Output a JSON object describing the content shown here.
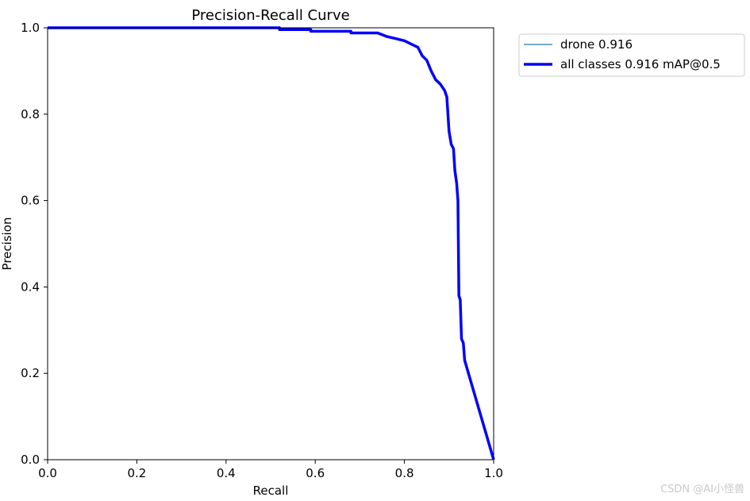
{
  "chart_data": {
    "type": "line",
    "title": "Precision-Recall Curve",
    "xlabel": "Recall",
    "ylabel": "Precision",
    "xlim": [
      0.0,
      1.0
    ],
    "ylim": [
      0.0,
      1.0
    ],
    "x_ticks": [
      "0.0",
      "0.2",
      "0.4",
      "0.6",
      "0.8",
      "1.0"
    ],
    "y_ticks": [
      "0.0",
      "0.2",
      "0.4",
      "0.6",
      "0.8",
      "1.0"
    ],
    "grid": false,
    "legend_placement": "outside-upper-right",
    "series": [
      {
        "name": "drone 0.916",
        "color": "#1f77b4",
        "points": [
          [
            0.0,
            1.0
          ],
          [
            0.52,
            1.0
          ],
          [
            0.52,
            0.996
          ],
          [
            0.59,
            0.996
          ],
          [
            0.59,
            0.992
          ],
          [
            0.68,
            0.992
          ],
          [
            0.68,
            0.988
          ],
          [
            0.74,
            0.988
          ],
          [
            0.76,
            0.98
          ],
          [
            0.78,
            0.975
          ],
          [
            0.8,
            0.97
          ],
          [
            0.82,
            0.96
          ],
          [
            0.83,
            0.955
          ],
          [
            0.84,
            0.935
          ],
          [
            0.85,
            0.925
          ],
          [
            0.86,
            0.9
          ],
          [
            0.865,
            0.89
          ],
          [
            0.87,
            0.88
          ],
          [
            0.88,
            0.87
          ],
          [
            0.89,
            0.855
          ],
          [
            0.895,
            0.84
          ],
          [
            0.9,
            0.76
          ],
          [
            0.905,
            0.73
          ],
          [
            0.91,
            0.72
          ],
          [
            0.913,
            0.67
          ],
          [
            0.917,
            0.64
          ],
          [
            0.92,
            0.6
          ],
          [
            0.922,
            0.38
          ],
          [
            0.925,
            0.37
          ],
          [
            0.928,
            0.28
          ],
          [
            0.932,
            0.27
          ],
          [
            0.935,
            0.23
          ],
          [
            1.0,
            0.0
          ]
        ]
      },
      {
        "name": "all classes 0.916 mAP@0.5",
        "color": "#0000ff",
        "points": [
          [
            0.0,
            1.0
          ],
          [
            0.52,
            1.0
          ],
          [
            0.52,
            0.996
          ],
          [
            0.59,
            0.996
          ],
          [
            0.59,
            0.992
          ],
          [
            0.68,
            0.992
          ],
          [
            0.68,
            0.988
          ],
          [
            0.74,
            0.988
          ],
          [
            0.76,
            0.98
          ],
          [
            0.78,
            0.975
          ],
          [
            0.8,
            0.97
          ],
          [
            0.82,
            0.96
          ],
          [
            0.83,
            0.955
          ],
          [
            0.84,
            0.935
          ],
          [
            0.85,
            0.925
          ],
          [
            0.86,
            0.9
          ],
          [
            0.865,
            0.89
          ],
          [
            0.87,
            0.88
          ],
          [
            0.88,
            0.87
          ],
          [
            0.89,
            0.855
          ],
          [
            0.895,
            0.84
          ],
          [
            0.9,
            0.76
          ],
          [
            0.905,
            0.73
          ],
          [
            0.91,
            0.72
          ],
          [
            0.913,
            0.67
          ],
          [
            0.917,
            0.64
          ],
          [
            0.92,
            0.6
          ],
          [
            0.922,
            0.38
          ],
          [
            0.925,
            0.37
          ],
          [
            0.928,
            0.28
          ],
          [
            0.932,
            0.27
          ],
          [
            0.935,
            0.23
          ],
          [
            1.0,
            0.0
          ]
        ]
      }
    ]
  },
  "watermark": "CSDN @AI小怪兽"
}
